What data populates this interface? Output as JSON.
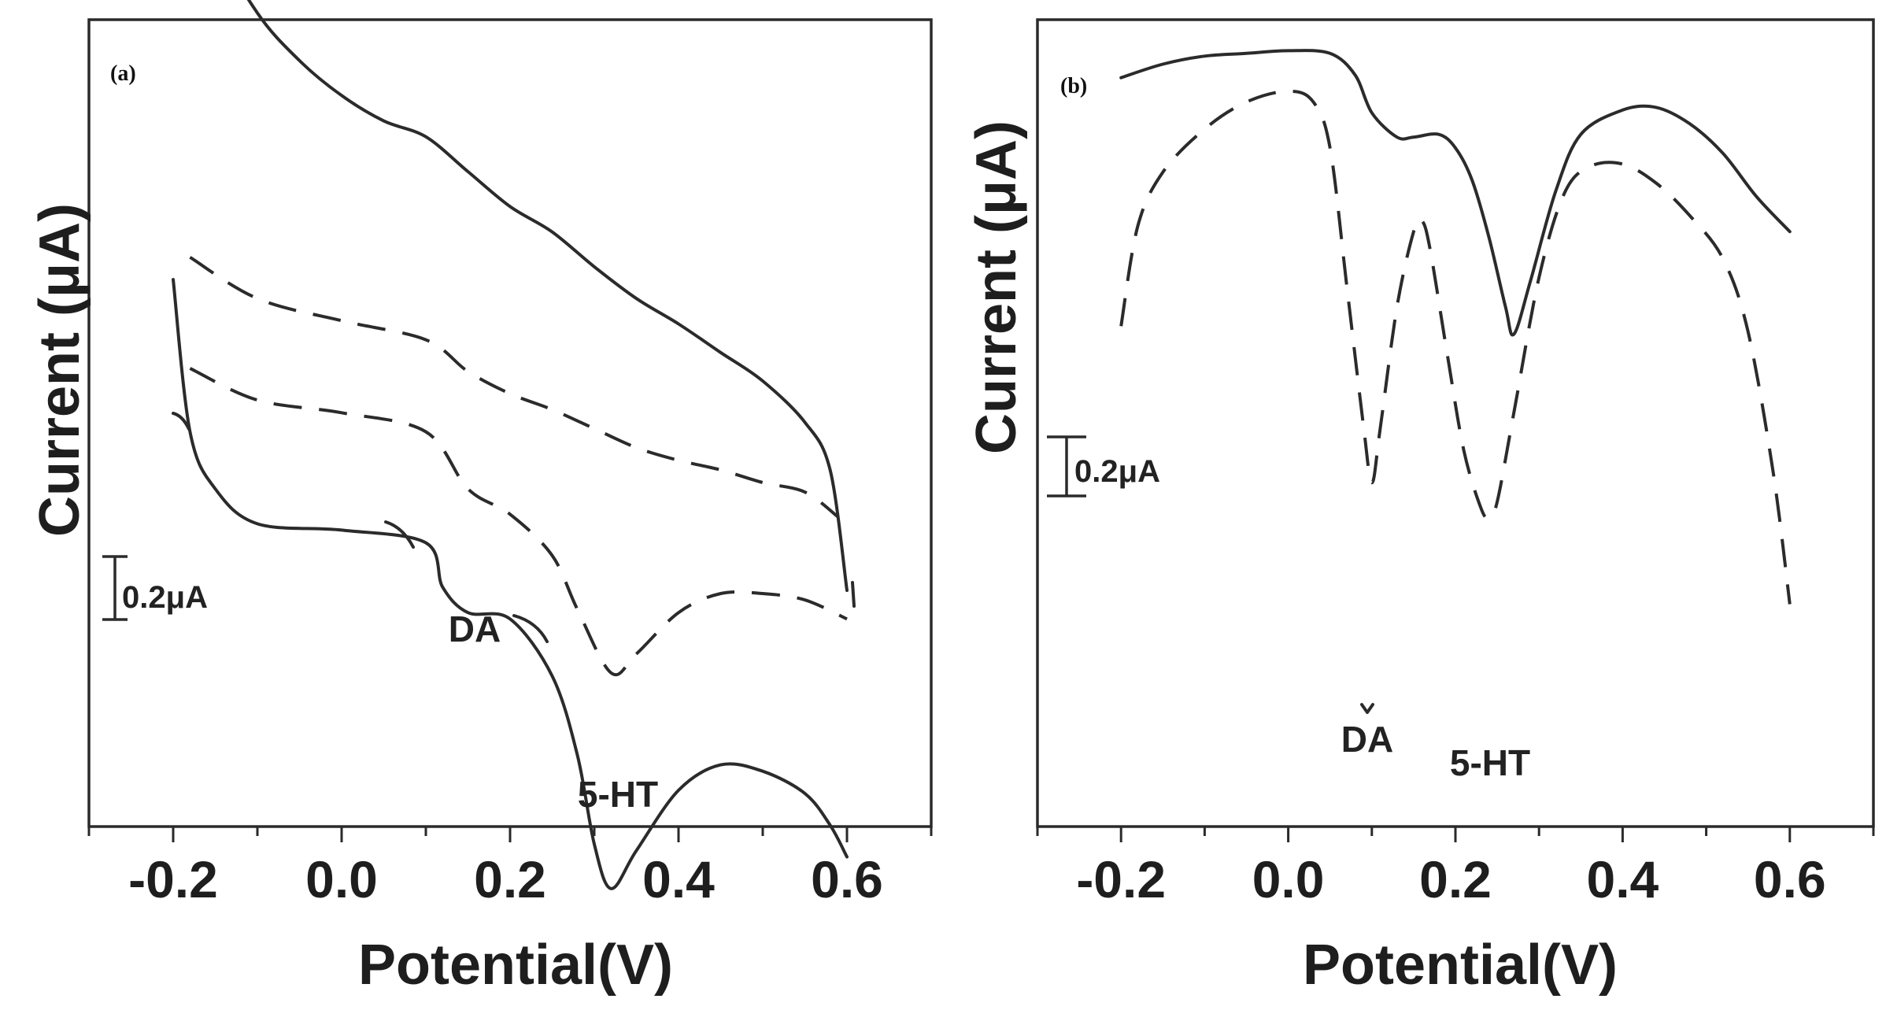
{
  "chart_data": [
    {
      "panel": "(a)",
      "type": "line",
      "xlabel": "Potential(V)",
      "ylabel": "Current (μA)",
      "xlim": [
        -0.3,
        0.7
      ],
      "xticks": [
        "-0.2",
        "0.0",
        "0.2",
        "0.4",
        "0.6"
      ],
      "scale_bar": "0.2μA",
      "annotations": [
        {
          "text": "DA",
          "x": 0.15,
          "y": -0.17
        },
        {
          "text": "5-HT",
          "x": 0.32,
          "y": -0.9
        }
      ],
      "series": [
        {
          "style": "solid",
          "x": [
            -0.2,
            -0.15,
            -0.1,
            -0.05,
            0.0,
            0.05,
            0.1,
            0.15,
            0.2,
            0.25,
            0.3,
            0.35,
            0.4,
            0.45,
            0.5,
            0.55,
            0.58,
            0.6
          ],
          "y": [
            2.45,
            2.06,
            1.82,
            1.67,
            1.56,
            1.48,
            1.43,
            1.32,
            1.21,
            1.13,
            1.02,
            0.92,
            0.84,
            0.75,
            0.66,
            0.53,
            0.38,
            0.0
          ]
        },
        {
          "style": "dashed",
          "x": [
            -0.18,
            -0.1,
            0.0,
            0.1,
            0.15,
            0.2,
            0.25,
            0.3,
            0.35,
            0.4,
            0.45,
            0.5,
            0.55,
            0.59
          ],
          "y": [
            1.05,
            0.92,
            0.85,
            0.79,
            0.69,
            0.62,
            0.57,
            0.51,
            0.45,
            0.41,
            0.38,
            0.34,
            0.31,
            0.23
          ]
        },
        {
          "style": "dashed",
          "x": [
            -0.18,
            -0.1,
            0.0,
            0.1,
            0.15,
            0.2,
            0.25,
            0.28,
            0.32,
            0.35,
            0.4,
            0.45,
            0.5,
            0.55,
            0.6
          ],
          "y": [
            0.7,
            0.6,
            0.56,
            0.5,
            0.32,
            0.24,
            0.11,
            -0.06,
            -0.26,
            -0.2,
            -0.07,
            -0.01,
            -0.01,
            -0.03,
            -0.09
          ]
        },
        {
          "style": "solid",
          "x": [
            -0.2,
            -0.18,
            -0.15,
            -0.1,
            0.0,
            0.1,
            0.12,
            0.15,
            0.2,
            0.25,
            0.28,
            0.3,
            0.32,
            0.35,
            0.4,
            0.45,
            0.5,
            0.55,
            0.58,
            0.6
          ],
          "y": [
            0.98,
            0.5,
            0.32,
            0.21,
            0.19,
            0.15,
            0.01,
            -0.07,
            -0.09,
            -0.27,
            -0.52,
            -0.8,
            -0.94,
            -0.82,
            -0.63,
            -0.55,
            -0.57,
            -0.64,
            -0.74,
            -0.84
          ]
        }
      ]
    },
    {
      "panel": "(b)",
      "type": "line",
      "xlabel": "Potential(V)",
      "ylabel": "Current (μA)",
      "xlim": [
        -0.3,
        0.7
      ],
      "xticks": [
        "-0.2",
        "0.0",
        "0.2",
        "0.4",
        "0.6"
      ],
      "scale_bar": "0.2μA",
      "annotations": [
        {
          "text": "DA",
          "x": 0.1,
          "y": -1.12
        },
        {
          "text": "5-HT",
          "x": 0.24,
          "y": -1.18
        }
      ],
      "series": [
        {
          "style": "solid",
          "x": [
            -0.2,
            -0.15,
            -0.1,
            -0.05,
            0.0,
            0.05,
            0.08,
            0.1,
            0.13,
            0.15,
            0.18,
            0.2,
            0.22,
            0.24,
            0.26,
            0.27,
            0.29,
            0.32,
            0.35,
            0.4,
            0.44,
            0.48,
            0.52,
            0.56,
            0.6
          ],
          "y": [
            1.17,
            1.22,
            1.25,
            1.26,
            1.27,
            1.26,
            1.18,
            1.04,
            0.95,
            0.95,
            0.96,
            0.91,
            0.79,
            0.58,
            0.32,
            0.22,
            0.42,
            0.75,
            0.96,
            1.05,
            1.06,
            1.0,
            0.89,
            0.73,
            0.6
          ]
        },
        {
          "style": "dashed",
          "x": [
            -0.2,
            -0.18,
            -0.15,
            -0.1,
            -0.05,
            0.0,
            0.03,
            0.05,
            0.07,
            0.09,
            0.1,
            0.11,
            0.13,
            0.15,
            0.16,
            0.17,
            0.19,
            0.21,
            0.23,
            0.24,
            0.25,
            0.27,
            0.3,
            0.33,
            0.36,
            0.4,
            0.44,
            0.48,
            0.52,
            0.55,
            0.58,
            0.6
          ],
          "y": [
            0.25,
            0.62,
            0.82,
            0.98,
            1.08,
            1.12,
            1.08,
            0.91,
            0.4,
            -0.12,
            -0.33,
            -0.13,
            0.32,
            0.6,
            0.64,
            0.53,
            0.15,
            -0.21,
            -0.42,
            -0.46,
            -0.4,
            -0.07,
            0.43,
            0.74,
            0.84,
            0.85,
            0.78,
            0.66,
            0.5,
            0.23,
            -0.29,
            -0.78
          ]
        }
      ]
    }
  ]
}
